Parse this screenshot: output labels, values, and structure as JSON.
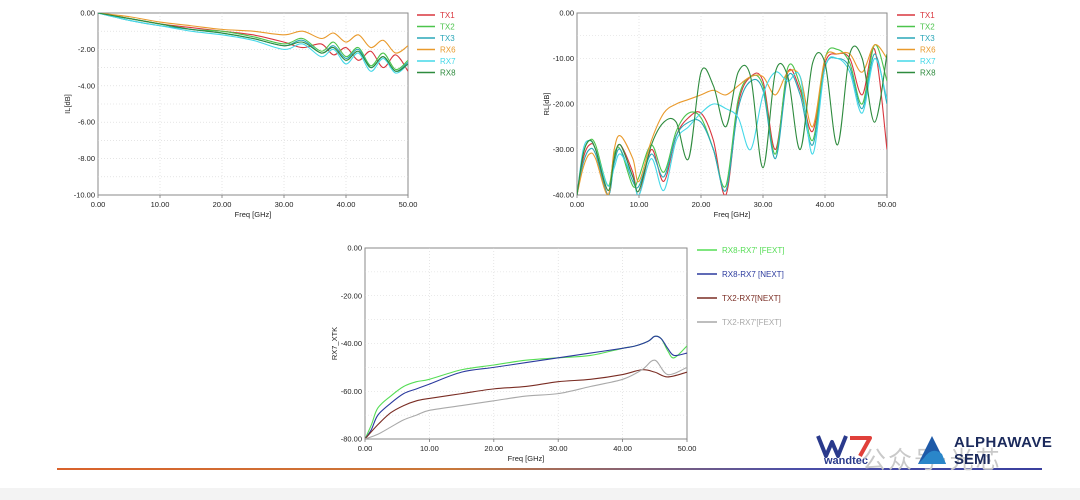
{
  "chart_data": [
    {
      "type": "line",
      "ylabel": "IL[dB]",
      "xlabel": "Freq [GHz]",
      "xlim": [
        0,
        50
      ],
      "ylim": [
        -10,
        0
      ],
      "xticks": [
        "0.00",
        "10.00",
        "20.00",
        "30.00",
        "40.00",
        "50.00"
      ],
      "yticks": [
        "0.00",
        "-2.00",
        "-4.00",
        "-6.00",
        "-8.00",
        "-10.00"
      ],
      "legend_position": "right",
      "grid": true,
      "series": [
        {
          "name": "TX1",
          "color": "#d9363e",
          "x": [
            0,
            5,
            10,
            15,
            20,
            25,
            30,
            33,
            36,
            38,
            40,
            42,
            44,
            46,
            48,
            50
          ],
          "y": [
            0,
            -0.3,
            -0.6,
            -0.8,
            -1.0,
            -1.2,
            -1.6,
            -1.9,
            -1.7,
            -2.3,
            -1.9,
            -2.6,
            -2.1,
            -3.0,
            -2.3,
            -3.2
          ]
        },
        {
          "name": "TX2",
          "color": "#4cc44c",
          "x": [
            0,
            5,
            10,
            15,
            20,
            25,
            30,
            33,
            36,
            38,
            40,
            42,
            44,
            46,
            48,
            50
          ],
          "y": [
            0,
            -0.3,
            -0.6,
            -0.9,
            -1.0,
            -1.3,
            -1.7,
            -1.4,
            -2.1,
            -1.6,
            -2.4,
            -1.9,
            -2.9,
            -2.2,
            -3.1,
            -2.6
          ]
        },
        {
          "name": "TX3",
          "color": "#2aa7b8",
          "x": [
            0,
            5,
            10,
            15,
            20,
            25,
            30,
            33,
            36,
            38,
            40,
            42,
            44,
            46,
            48,
            50
          ],
          "y": [
            0,
            -0.4,
            -0.7,
            -0.9,
            -1.1,
            -1.4,
            -1.8,
            -1.5,
            -2.2,
            -1.8,
            -2.5,
            -2.0,
            -3.0,
            -2.4,
            -3.2,
            -2.7
          ]
        },
        {
          "name": "RX6",
          "color": "#e99a2c",
          "x": [
            0,
            5,
            10,
            15,
            20,
            25,
            30,
            33,
            36,
            38,
            40,
            42,
            44,
            46,
            48,
            50
          ],
          "y": [
            0,
            -0.2,
            -0.5,
            -0.7,
            -0.9,
            -1.0,
            -1.2,
            -1.0,
            -1.4,
            -1.1,
            -1.6,
            -1.2,
            -1.9,
            -1.5,
            -2.2,
            -1.8
          ]
        },
        {
          "name": "RX7",
          "color": "#45d8e8",
          "x": [
            0,
            5,
            10,
            15,
            20,
            25,
            30,
            33,
            36,
            38,
            40,
            42,
            44,
            46,
            48,
            50
          ],
          "y": [
            0,
            -0.4,
            -0.7,
            -1.0,
            -1.2,
            -1.5,
            -2.0,
            -1.7,
            -2.4,
            -2.0,
            -2.8,
            -2.2,
            -3.2,
            -2.5,
            -3.3,
            -2.8
          ]
        },
        {
          "name": "RX8",
          "color": "#2e8b3e",
          "x": [
            0,
            5,
            10,
            15,
            20,
            25,
            30,
            33,
            36,
            38,
            40,
            42,
            44,
            46,
            48,
            50
          ],
          "y": [
            0,
            -0.3,
            -0.6,
            -0.9,
            -1.1,
            -1.4,
            -1.8,
            -1.6,
            -2.2,
            -1.9,
            -2.6,
            -2.1,
            -3.0,
            -2.4,
            -3.2,
            -2.8
          ]
        }
      ]
    },
    {
      "type": "line",
      "ylabel": "RL[dB]",
      "xlabel": "Freq [GHz]",
      "xlim": [
        0,
        50
      ],
      "ylim": [
        -40,
        0
      ],
      "xticks": [
        "0.00",
        "10.00",
        "20.00",
        "30.00",
        "40.00",
        "50.00"
      ],
      "yticks": [
        "0.00",
        "-10.00",
        "-20.00",
        "-30.00",
        "-40.00"
      ],
      "legend_position": "right",
      "grid": true,
      "series": [
        {
          "name": "TX1",
          "color": "#d9363e",
          "x": [
            0,
            1,
            2,
            3,
            5,
            6,
            7,
            9,
            10,
            12,
            14,
            16,
            18,
            20,
            22,
            24,
            26,
            28,
            30,
            32,
            34,
            36,
            38,
            40,
            42,
            44,
            46,
            48,
            50
          ],
          "y": [
            -40,
            -32,
            -29,
            -30,
            -40,
            -32,
            -29,
            -35,
            -40,
            -30,
            -37,
            -27,
            -23,
            -22,
            -28,
            -40,
            -20,
            -14,
            -15,
            -30,
            -13,
            -17,
            -26,
            -11,
            -9,
            -10,
            -18,
            -8,
            -30
          ]
        },
        {
          "name": "TX2",
          "color": "#4cc44c",
          "x": [
            0,
            1,
            2,
            3,
            5,
            6,
            7,
            9,
            10,
            12,
            14,
            16,
            18,
            20,
            22,
            24,
            26,
            28,
            30,
            32,
            34,
            36,
            38,
            40,
            42,
            44,
            46,
            48,
            50
          ],
          "y": [
            -40,
            -31,
            -28,
            -29,
            -38,
            -31,
            -30,
            -38,
            -36,
            -29,
            -35,
            -26,
            -22,
            -23,
            -30,
            -38,
            -19,
            -14,
            -16,
            -31,
            -12,
            -16,
            -28,
            -10,
            -8,
            -11,
            -20,
            -7,
            -15
          ]
        },
        {
          "name": "TX3",
          "color": "#2aa7b8",
          "x": [
            0,
            1,
            2,
            3,
            5,
            6,
            7,
            9,
            10,
            12,
            14,
            16,
            18,
            20,
            22,
            24,
            26,
            28,
            30,
            32,
            34,
            36,
            38,
            40,
            42,
            44,
            46,
            48,
            50
          ],
          "y": [
            -40,
            -33,
            -30,
            -31,
            -40,
            -33,
            -30,
            -37,
            -38,
            -31,
            -36,
            -27,
            -24,
            -24,
            -30,
            -39,
            -21,
            -15,
            -17,
            -32,
            -14,
            -18,
            -29,
            -12,
            -10,
            -12,
            -21,
            -9,
            -20
          ]
        },
        {
          "name": "RX6",
          "color": "#e99a2c",
          "x": [
            0,
            1,
            2,
            3,
            5,
            6,
            7,
            9,
            10,
            12,
            14,
            16,
            18,
            20,
            22,
            24,
            26,
            28,
            30,
            32,
            34,
            36,
            38,
            40,
            42,
            44,
            46,
            48,
            50
          ],
          "y": [
            -40,
            -34,
            -31,
            -32,
            -40,
            -30,
            -27,
            -32,
            -37,
            -28,
            -22,
            -20,
            -19,
            -18,
            -17,
            -18,
            -16,
            -14,
            -14,
            -18,
            -13,
            -14,
            -25,
            -10,
            -9,
            -9,
            -13,
            -7,
            -10
          ]
        },
        {
          "name": "RX7",
          "color": "#45d8e8",
          "x": [
            0,
            1,
            2,
            3,
            5,
            6,
            7,
            9,
            10,
            12,
            14,
            16,
            18,
            20,
            22,
            24,
            26,
            28,
            30,
            32,
            34,
            36,
            38,
            40,
            42,
            44,
            46,
            48,
            50
          ],
          "y": [
            -40,
            -30,
            -28,
            -30,
            -38,
            -34,
            -31,
            -36,
            -40,
            -32,
            -39,
            -28,
            -25,
            -22,
            -20,
            -21,
            -23,
            -30,
            -18,
            -13,
            -15,
            -14,
            -31,
            -12,
            -10,
            -13,
            -22,
            -10,
            -19
          ]
        },
        {
          "name": "RX8",
          "color": "#2e8b3e",
          "x": [
            0,
            1,
            2,
            3,
            5,
            6,
            7,
            9,
            10,
            12,
            14,
            16,
            18,
            20,
            22,
            24,
            26,
            28,
            30,
            32,
            34,
            36,
            38,
            40,
            42,
            44,
            46,
            48,
            50
          ],
          "y": [
            -40,
            -31,
            -28,
            -30,
            -39,
            -32,
            -29,
            -36,
            -39,
            -29,
            -24,
            -24,
            -32,
            -13,
            -16,
            -25,
            -13,
            -14,
            -34,
            -13,
            -14,
            -30,
            -11,
            -11,
            -29,
            -9,
            -10,
            -24,
            -9
          ]
        }
      ]
    },
    {
      "type": "line",
      "ylabel": "RX7_XTK",
      "xlabel": "Freq [GHz]",
      "xlim": [
        0,
        50
      ],
      "ylim": [
        -80,
        0
      ],
      "xticks": [
        "0.00",
        "10.00",
        "20.00",
        "30.00",
        "40.00",
        "50.00"
      ],
      "yticks": [
        "0.00",
        "-20.00",
        "-40.00",
        "-60.00",
        "-80.00"
      ],
      "legend_position": "right",
      "grid": true,
      "series": [
        {
          "name": "RX8-RX7' [FEXT]",
          "color": "#55dd55",
          "x": [
            0,
            1,
            2,
            4,
            6,
            8,
            10,
            15,
            20,
            25,
            30,
            35,
            40,
            42,
            44,
            45,
            46,
            47,
            48,
            50
          ],
          "y": [
            -80,
            -74,
            -67,
            -62,
            -58,
            -56,
            -55,
            -51,
            -49,
            -47,
            -46,
            -45,
            -42,
            -41,
            -39,
            -37,
            -38,
            -43,
            -46,
            -41
          ]
        },
        {
          "name": "RX8-RX7 [NEXT]",
          "color": "#2b3a9e",
          "x": [
            0,
            1,
            2,
            4,
            6,
            8,
            10,
            15,
            20,
            25,
            30,
            35,
            40,
            42,
            44,
            45,
            46,
            47,
            48,
            50
          ],
          "y": [
            -80,
            -76,
            -70,
            -65,
            -61,
            -59,
            -57,
            -52,
            -50,
            -48,
            -46,
            -44,
            -42,
            -41,
            -39,
            -37,
            -38,
            -42,
            -45,
            -44
          ]
        },
        {
          "name": "TX2-RX7[NEXT]",
          "color": "#7a2d24",
          "x": [
            0,
            2,
            4,
            6,
            8,
            10,
            15,
            20,
            25,
            30,
            35,
            40,
            43,
            45,
            47,
            50
          ],
          "y": [
            -80,
            -74,
            -69,
            -66,
            -64,
            -63,
            -61,
            -59,
            -58,
            -56,
            -55,
            -53,
            -51,
            -52,
            -54,
            -52
          ]
        },
        {
          "name": "TX2-RX7'[FEXT]",
          "color": "#a9a9a9",
          "x": [
            0,
            2,
            4,
            6,
            8,
            10,
            15,
            20,
            25,
            30,
            35,
            40,
            43,
            45,
            47,
            50
          ],
          "y": [
            -80,
            -78,
            -75,
            -72,
            -70,
            -68,
            -66,
            -64,
            -62,
            -61,
            -58,
            -55,
            -51,
            -47,
            -53,
            -50
          ]
        }
      ]
    }
  ],
  "logos": {
    "left": "wandtec",
    "right_line1": "ALPHAWAVE",
    "right_line2": "SEMI"
  },
  "watermark": "公众号·光芯"
}
